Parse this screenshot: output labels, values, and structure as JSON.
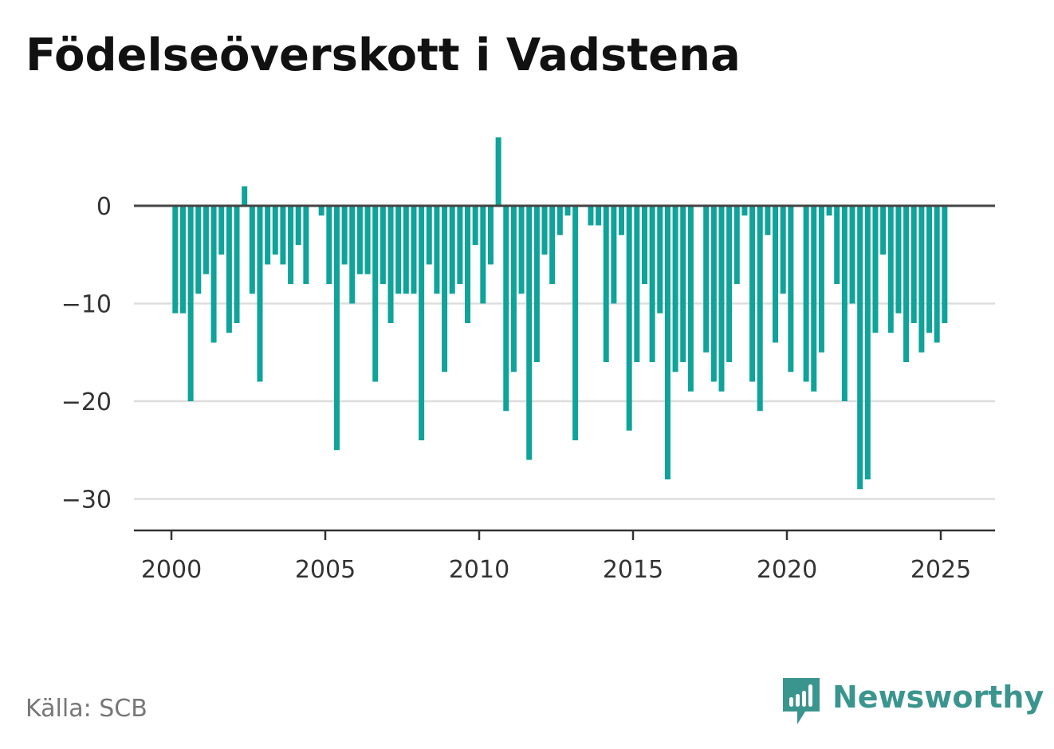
{
  "title": "Födelseöverskott i Vadstena",
  "source": "Källa: SCB",
  "brand": {
    "name": "Newsworthy",
    "icon": "bar-chart-speech-bubble-icon",
    "color": "#3b958f"
  },
  "colors": {
    "bar": "#0fa39a",
    "zero_line": "#444444",
    "grid": "#dddddd",
    "axis": "#333333",
    "tick_text": "#333333"
  },
  "chart_data": {
    "type": "bar",
    "title": "Födelseöverskott i Vadstena",
    "xlabel": "",
    "ylabel": "",
    "x_ticks": [
      "2000",
      "2005",
      "2010",
      "2015",
      "2020",
      "2025"
    ],
    "y_ticks": [
      "0",
      "−10",
      "−20",
      "−30"
    ],
    "y_tick_values": [
      0,
      -10,
      -20,
      -30
    ],
    "x_tick_values": [
      2000,
      2005,
      2010,
      2015,
      2020,
      2025
    ],
    "xlim": [
      1998.75,
      2026.75
    ],
    "ylim": [
      -33,
      10
    ],
    "grid": true,
    "series": [
      {
        "x": [
          2000.125,
          2000.375,
          2000.625,
          2000.875,
          2001.125,
          2001.375,
          2001.625,
          2001.875,
          2002.125,
          2002.375,
          2002.625,
          2002.875,
          2003.125,
          2003.375,
          2003.625,
          2003.875,
          2004.125,
          2004.375,
          2004.625,
          2004.875,
          2005.125,
          2005.375,
          2005.625,
          2005.875,
          2006.125,
          2006.375,
          2006.625,
          2006.875,
          2007.125,
          2007.375,
          2007.625,
          2007.875,
          2008.125,
          2008.375,
          2008.625,
          2008.875,
          2009.125,
          2009.375,
          2009.625,
          2009.875,
          2010.125,
          2010.375,
          2010.625,
          2010.875,
          2011.125,
          2011.375,
          2011.625,
          2011.875,
          2012.125,
          2012.375,
          2012.625,
          2012.875,
          2013.125,
          2013.375,
          2013.625,
          2013.875,
          2014.125,
          2014.375,
          2014.625,
          2014.875,
          2015.125,
          2015.375,
          2015.625,
          2015.875,
          2016.125,
          2016.375,
          2016.625,
          2016.875,
          2017.125,
          2017.375,
          2017.625,
          2017.875,
          2018.125,
          2018.375,
          2018.625,
          2018.875,
          2019.125,
          2019.375,
          2019.625,
          2019.875,
          2020.125,
          2020.375,
          2020.625,
          2020.875,
          2021.125,
          2021.375,
          2021.625,
          2021.875,
          2022.125,
          2022.375,
          2022.625,
          2022.875,
          2023.125,
          2023.375,
          2023.625,
          2023.875,
          2024.125,
          2024.375,
          2024.625,
          2024.875,
          2025.125,
          2025.375
        ],
        "values": [
          -11,
          -11,
          -20,
          -9,
          -7,
          -14,
          -5,
          -13,
          -12,
          2,
          -9,
          -18,
          -6,
          -5,
          -6,
          -8,
          -4,
          -8,
          0,
          -1,
          -8,
          -25,
          -6,
          -10,
          -7,
          -7,
          -18,
          -8,
          -12,
          -9,
          -9,
          -9,
          -24,
          -6,
          -9,
          -17,
          -9,
          -8,
          -12,
          -4,
          -10,
          -6,
          7,
          -21,
          -17,
          -9,
          -26,
          -16,
          -5,
          -8,
          -3,
          -1,
          -24,
          0,
          -2,
          -2,
          -16,
          -10,
          -3,
          -23,
          -16,
          -8,
          -16,
          -11,
          -28,
          -17,
          -16,
          -19,
          0,
          -15,
          -18,
          -19,
          -16,
          -8,
          -1,
          -18,
          -21,
          -3,
          -14,
          -9,
          -17,
          0,
          -18,
          -19,
          -15,
          -1,
          -8,
          -20,
          -10,
          -29,
          -28,
          -13,
          -5,
          -13,
          -11,
          -16,
          -12,
          -15,
          -13,
          -14,
          -12,
          0
        ]
      }
    ]
  }
}
